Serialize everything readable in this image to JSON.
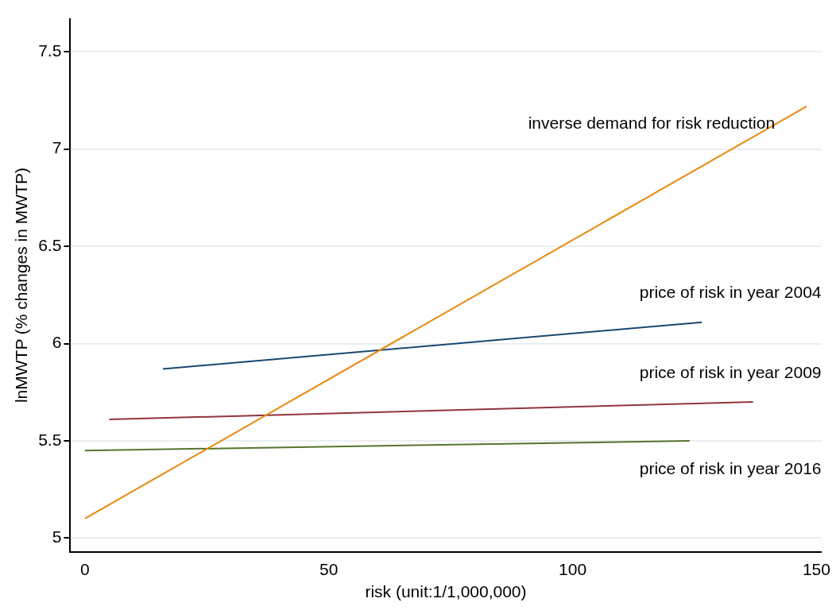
{
  "chart_data": {
    "type": "line",
    "xlabel": "risk (unit:1/1,000,000)",
    "ylabel": "lnMWTP (% changes in MWTP)",
    "xlim": [
      -3,
      151
    ],
    "xticks": [
      0,
      50,
      100,
      150
    ],
    "ylim": [
      4.93,
      7.67
    ],
    "yticks": [
      5,
      5.5,
      6,
      6.5,
      7,
      7.5
    ],
    "grid": "y",
    "legend": false,
    "marker": "none",
    "line_style": "solid",
    "series": [
      {
        "name": "inverse demand for risk reduction",
        "color": "#e8890c",
        "x": [
          0,
          148
        ],
        "values": [
          5.1,
          7.22
        ]
      },
      {
        "name": "price of risk in year 2004",
        "color": "#1a476f",
        "x": [
          16,
          126.5
        ],
        "values": [
          5.87,
          6.11
        ]
      },
      {
        "name": "price of risk in year 2009",
        "color": "#90353b",
        "x": [
          5,
          137
        ],
        "values": [
          5.61,
          5.7
        ]
      },
      {
        "name": "price of risk in year 2016",
        "color": "#55752f",
        "x": [
          0,
          124
        ],
        "values": [
          5.45,
          5.5
        ]
      }
    ]
  }
}
